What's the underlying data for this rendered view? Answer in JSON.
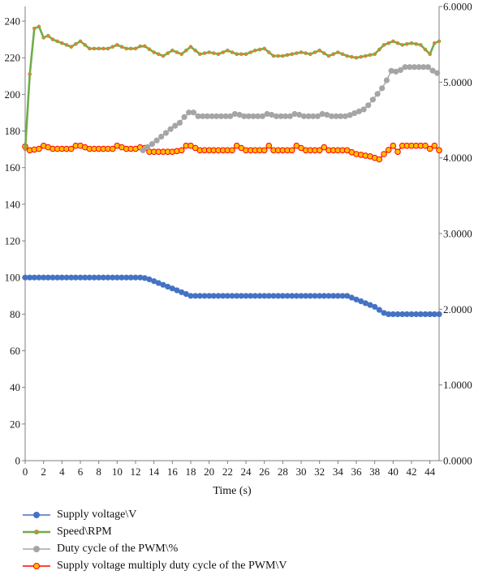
{
  "chart_data": {
    "type": "line",
    "xlabel": "Time (s)",
    "x_ticks": [
      0,
      2,
      4,
      6,
      8,
      10,
      12,
      14,
      16,
      18,
      20,
      22,
      24,
      26,
      28,
      30,
      32,
      34,
      36,
      38,
      40,
      42,
      44
    ],
    "x_range": [
      0,
      45
    ],
    "y_left_ticks": [
      "0",
      "20",
      "40",
      "60",
      "80",
      "100",
      "120",
      "140",
      "160",
      "180",
      "200",
      "220",
      "240"
    ],
    "y_left_range": [
      0,
      248
    ],
    "y_right_ticks": [
      "0.0000",
      "1.0000",
      "2.0000",
      "3.0000",
      "4.0000",
      "5.0000",
      "6.0000"
    ],
    "y_right_range": [
      0,
      6
    ],
    "grid": false,
    "legend_position": "bottom",
    "series": [
      {
        "name": "Supply voltage\\V",
        "axis": "left",
        "color": "#4472c4",
        "marker_fill": "#4472c4",
        "keypoints": [
          [
            0,
            100
          ],
          [
            12.8,
            100
          ],
          [
            13.5,
            99
          ],
          [
            15,
            96
          ],
          [
            16.5,
            93
          ],
          [
            18,
            90
          ],
          [
            19,
            90
          ],
          [
            35,
            90
          ],
          [
            36.5,
            87
          ],
          [
            38,
            84
          ],
          [
            39.2,
            80
          ],
          [
            45,
            80
          ]
        ]
      },
      {
        "name": "Speed\\RPM",
        "axis": "left",
        "color": "#70ad47",
        "marker_fill": "#ed7d31",
        "keypoints": [
          [
            0,
            170
          ],
          [
            0.5,
            211
          ],
          [
            1.1,
            241
          ],
          [
            1.5,
            237
          ],
          [
            2,
            231
          ],
          [
            2.5,
            232
          ],
          [
            3,
            230
          ],
          [
            3.5,
            229
          ],
          [
            4,
            228
          ],
          [
            5,
            226
          ],
          [
            6,
            229
          ],
          [
            7,
            225
          ],
          [
            8,
            225
          ],
          [
            9,
            225
          ],
          [
            10,
            227
          ],
          [
            11,
            225
          ],
          [
            12,
            225
          ],
          [
            12.8,
            227
          ],
          [
            14,
            223
          ],
          [
            15,
            221
          ],
          [
            16,
            224
          ],
          [
            17,
            222
          ],
          [
            18,
            226
          ],
          [
            19,
            222
          ],
          [
            20,
            223
          ],
          [
            21,
            222
          ],
          [
            22,
            224
          ],
          [
            23,
            222
          ],
          [
            24,
            222
          ],
          [
            25,
            224
          ],
          [
            26,
            225
          ],
          [
            27,
            221
          ],
          [
            28,
            221
          ],
          [
            29,
            222
          ],
          [
            30,
            223
          ],
          [
            31,
            222
          ],
          [
            32,
            224
          ],
          [
            33,
            221
          ],
          [
            34,
            223
          ],
          [
            35,
            221
          ],
          [
            36,
            220
          ],
          [
            37,
            221
          ],
          [
            38,
            222
          ],
          [
            39,
            227
          ],
          [
            40,
            229
          ],
          [
            41,
            227
          ],
          [
            42,
            228
          ],
          [
            43,
            227
          ],
          [
            44,
            222
          ],
          [
            44.5,
            228
          ],
          [
            45,
            229
          ]
        ]
      },
      {
        "name": "Duty cycle of the PWM\\%",
        "axis": "right",
        "color": "#a5a5a5",
        "marker_fill": "#a5a5a5",
        "keypoints": [
          [
            12.8,
            4.1
          ],
          [
            14,
            4.2
          ],
          [
            15,
            4.3
          ],
          [
            16,
            4.4
          ],
          [
            17,
            4.48
          ],
          [
            17.6,
            4.6
          ],
          [
            18.5,
            4.6
          ],
          [
            18.8,
            4.55
          ],
          [
            22.5,
            4.55
          ],
          [
            23,
            4.6
          ],
          [
            23.5,
            4.55
          ],
          [
            26,
            4.55
          ],
          [
            26.5,
            4.6
          ],
          [
            27,
            4.55
          ],
          [
            29,
            4.55
          ],
          [
            29.5,
            4.6
          ],
          [
            30,
            4.55
          ],
          [
            32,
            4.55
          ],
          [
            32.5,
            4.6
          ],
          [
            33,
            4.55
          ],
          [
            35,
            4.55
          ],
          [
            36,
            4.6
          ],
          [
            37,
            4.65
          ],
          [
            38,
            4.8
          ],
          [
            39,
            4.95
          ],
          [
            40,
            5.2
          ],
          [
            40.5,
            5.1
          ],
          [
            41,
            5.2
          ],
          [
            44,
            5.2
          ],
          [
            44.5,
            5.12
          ],
          [
            45,
            5.12
          ]
        ]
      },
      {
        "name": "Supply voltage multiply duty cycle of the PWM\\V",
        "axis": "right",
        "color": "#ff0000",
        "marker_fill": "#ffc000",
        "keypoints": [
          [
            0,
            4.15
          ],
          [
            0.5,
            4.1
          ],
          [
            1.5,
            4.12
          ],
          [
            2,
            4.16
          ],
          [
            3,
            4.12
          ],
          [
            5,
            4.12
          ],
          [
            5.5,
            4.16
          ],
          [
            6,
            4.16
          ],
          [
            7,
            4.12
          ],
          [
            9.5,
            4.12
          ],
          [
            10,
            4.16
          ],
          [
            11,
            4.12
          ],
          [
            12,
            4.12
          ],
          [
            12.8,
            4.15
          ],
          [
            13.5,
            4.08
          ],
          [
            16,
            4.08
          ],
          [
            17,
            4.1
          ],
          [
            17.5,
            4.16
          ],
          [
            18,
            4.16
          ],
          [
            19,
            4.1
          ],
          [
            22.5,
            4.1
          ],
          [
            23,
            4.16
          ],
          [
            24,
            4.1
          ],
          [
            26,
            4.1
          ],
          [
            26.5,
            4.16
          ],
          [
            27,
            4.1
          ],
          [
            29,
            4.1
          ],
          [
            29.5,
            4.16
          ],
          [
            30.5,
            4.1
          ],
          [
            32,
            4.1
          ],
          [
            32.5,
            4.14
          ],
          [
            33,
            4.1
          ],
          [
            35,
            4.1
          ],
          [
            36,
            4.05
          ],
          [
            37.5,
            4.02
          ],
          [
            38.5,
            3.98
          ],
          [
            39,
            4.05
          ],
          [
            40,
            4.16
          ],
          [
            40.5,
            4.08
          ],
          [
            41,
            4.16
          ],
          [
            43.5,
            4.16
          ],
          [
            44,
            4.12
          ],
          [
            44.5,
            4.16
          ],
          [
            45,
            4.1
          ]
        ]
      }
    ]
  }
}
